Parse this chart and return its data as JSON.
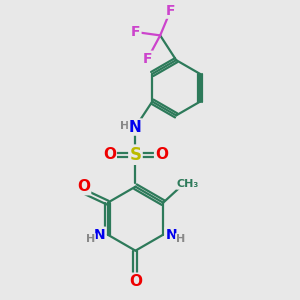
{
  "background_color": "#e8e8e8",
  "atom_colors": {
    "C": "#2d7a5a",
    "N": "#0000ee",
    "O": "#ee0000",
    "S": "#bbbb00",
    "F": "#cc44cc",
    "H": "#888888"
  },
  "bond_color": "#2d7a5a",
  "line_width": 1.6,
  "figsize": [
    3.0,
    3.0
  ],
  "dpi": 100
}
